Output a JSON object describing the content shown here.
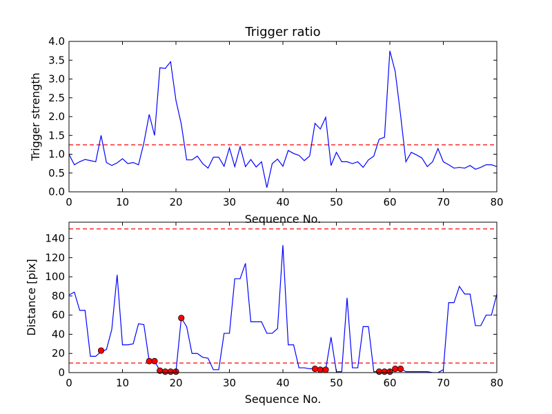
{
  "chart_data": [
    {
      "type": "line",
      "title": "Trigger ratio",
      "xlabel": "Sequence No.",
      "ylabel": "Trigger strength",
      "xlim": [
        0,
        80
      ],
      "ylim": [
        0,
        4.0
      ],
      "xticks": [
        0,
        10,
        20,
        30,
        40,
        50,
        60,
        70,
        80
      ],
      "yticks": [
        "0.0",
        "0.5",
        "1.0",
        "1.5",
        "2.0",
        "2.5",
        "3.0",
        "3.5",
        "4.0"
      ],
      "series": [
        {
          "color": "#0000ff",
          "x": [
            0,
            1,
            2,
            3,
            4,
            5,
            6,
            7,
            8,
            9,
            10,
            11,
            12,
            13,
            14,
            15,
            16,
            17,
            18,
            19,
            20,
            21,
            22,
            23,
            24,
            25,
            26,
            27,
            28,
            29,
            30,
            31,
            32,
            33,
            34,
            35,
            36,
            37,
            38,
            39,
            40,
            41,
            42,
            43,
            44,
            45,
            46,
            47,
            48,
            49,
            50,
            51,
            52,
            53,
            54,
            55,
            56,
            57,
            58,
            59,
            60,
            61,
            62,
            63,
            64,
            65,
            66,
            67,
            68,
            69,
            70,
            71,
            72,
            73,
            74,
            75,
            76,
            77,
            78,
            79,
            80
          ],
          "y": [
            1.0,
            0.72,
            0.8,
            0.86,
            0.83,
            0.8,
            1.5,
            0.78,
            0.7,
            0.77,
            0.88,
            0.75,
            0.78,
            0.72,
            1.3,
            2.06,
            1.5,
            3.3,
            3.28,
            3.46,
            2.43,
            1.8,
            0.85,
            0.85,
            0.95,
            0.75,
            0.63,
            0.92,
            0.92,
            0.68,
            1.17,
            0.67,
            1.2,
            0.67,
            0.86,
            0.66,
            0.8,
            0.11,
            0.75,
            0.87,
            0.68,
            1.1,
            1.02,
            0.97,
            0.83,
            0.95,
            1.82,
            1.67,
            1.98,
            0.7,
            1.05,
            0.8,
            0.8,
            0.75,
            0.8,
            0.65,
            0.85,
            0.95,
            1.4,
            1.45,
            3.75,
            3.2,
            2.05,
            0.8,
            1.05,
            0.98,
            0.9,
            0.67,
            0.8,
            1.15,
            0.8,
            0.72,
            0.63,
            0.65,
            0.63,
            0.7,
            0.6,
            0.65,
            0.72,
            0.72,
            0.67
          ]
        }
      ],
      "reference_lines": [
        {
          "y": 1.25,
          "style": "dashed",
          "color": "#ff0000"
        }
      ]
    },
    {
      "type": "line",
      "title": "",
      "xlabel": "Sequence No.",
      "ylabel": "Distance [pix]",
      "xlim": [
        0,
        80
      ],
      "ylim": [
        0,
        157
      ],
      "xticks": [
        0,
        10,
        20,
        30,
        40,
        50,
        60,
        70,
        80
      ],
      "yticks": [
        0,
        20,
        40,
        60,
        80,
        100,
        120,
        140
      ],
      "series": [
        {
          "color": "#0000ff",
          "x": [
            0,
            1,
            2,
            3,
            4,
            5,
            6,
            7,
            8,
            9,
            10,
            11,
            12,
            13,
            14,
            15,
            16,
            17,
            18,
            19,
            20,
            21,
            22,
            23,
            24,
            25,
            26,
            27,
            28,
            29,
            30,
            31,
            32,
            33,
            34,
            35,
            36,
            37,
            38,
            39,
            40,
            41,
            42,
            43,
            44,
            45,
            46,
            47,
            48,
            49,
            50,
            51,
            52,
            53,
            54,
            55,
            56,
            57,
            58,
            59,
            60,
            61,
            62,
            63,
            64,
            65,
            66,
            67,
            68,
            69,
            70,
            71,
            72,
            73,
            74,
            75,
            76,
            77,
            78,
            79,
            80
          ],
          "y": [
            81,
            84,
            65,
            65,
            17,
            17,
            22,
            24,
            45,
            102,
            29,
            29,
            30,
            51,
            50,
            12,
            12,
            2,
            1,
            1,
            1,
            57,
            48,
            20,
            20,
            16,
            15,
            3,
            3,
            41,
            41,
            98,
            98,
            114,
            53,
            53,
            53,
            41,
            41,
            46,
            133,
            29,
            29,
            5,
            5,
            4,
            4,
            2,
            3,
            37,
            1,
            1,
            78,
            5,
            5,
            48,
            48,
            1,
            1,
            1,
            1,
            4,
            4,
            1,
            1,
            1,
            1,
            1,
            0,
            0,
            3,
            73,
            73,
            90,
            82,
            82,
            49,
            49,
            60,
            60,
            82
          ]
        }
      ],
      "markers": {
        "color": "#ff0000",
        "points": [
          [
            6,
            23
          ],
          [
            15,
            12
          ],
          [
            16,
            12
          ],
          [
            17,
            2
          ],
          [
            18,
            1
          ],
          [
            19,
            1
          ],
          [
            20,
            1
          ],
          [
            21,
            57
          ],
          [
            46,
            4
          ],
          [
            47,
            3
          ],
          [
            48,
            3
          ],
          [
            58,
            1
          ],
          [
            59,
            1
          ],
          [
            60,
            1
          ],
          [
            61,
            4
          ],
          [
            62,
            4
          ]
        ]
      },
      "reference_lines": [
        {
          "y": 10,
          "style": "dashed",
          "color": "#ff0000"
        },
        {
          "y": 150,
          "style": "dashed",
          "color": "#ff0000"
        }
      ]
    }
  ]
}
